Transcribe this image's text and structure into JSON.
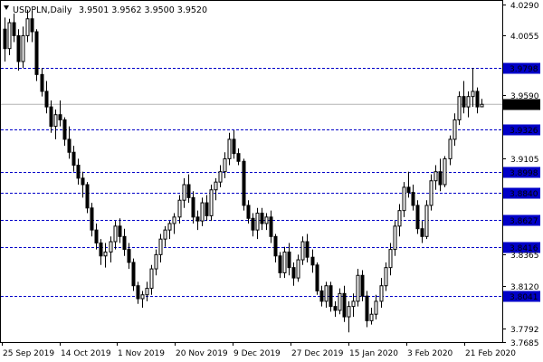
{
  "header": {
    "symbol_timeframe": "USDPLN,Daily",
    "ohlc": "3.9501 3.9562 3.9500 3.9520"
  },
  "colors": {
    "level": "#0000C8",
    "level_label_bg": "#0000C8",
    "current_label_bg": "#000000",
    "bid_line": "#B4B4B4",
    "candle_bull": "#FFFFFF",
    "candle_bear": "#000000"
  },
  "chart_data": {
    "type": "candlestick",
    "symbol": "USDPLN",
    "timeframe": "Daily",
    "ylim": [
      3.7685,
      4.0318
    ],
    "y_ticks": [
      "4.0290",
      "4.0055",
      "3.9590",
      "3.9105",
      "3.8365",
      "3.8120",
      "3.7792",
      "3.7685"
    ],
    "x_labels": [
      "25 Sep 2019",
      "14 Oct 2019",
      "1 Nov 2019",
      "20 Nov 2019",
      "9 Dec 2019",
      "27 Dec 2019",
      "15 Jan 2020",
      "3 Feb 2020",
      "21 Feb 2020"
    ],
    "levels": [
      "3.9798",
      "3.9326",
      "3.8998",
      "3.8840",
      "3.8627",
      "3.8416",
      "3.8041"
    ],
    "current_price": "3.9520",
    "candles": [
      [
        4.01,
        4.019,
        3.985,
        3.995
      ],
      [
        3.995,
        4.018,
        3.99,
        4.015
      ],
      [
        4.015,
        4.022,
        4.0,
        4.005
      ],
      [
        4.005,
        4.01,
        3.978,
        3.985
      ],
      [
        3.985,
        4.012,
        3.98,
        4.005
      ],
      [
        4.005,
        4.025,
        4.0,
        4.018
      ],
      [
        4.018,
        4.024,
        4.0,
        4.008
      ],
      [
        4.008,
        4.01,
        3.97,
        3.975
      ],
      [
        3.975,
        3.98,
        3.958,
        3.962
      ],
      [
        3.962,
        3.97,
        3.945,
        3.95
      ],
      [
        3.95,
        3.955,
        3.93,
        3.935
      ],
      [
        3.935,
        3.948,
        3.925,
        3.944
      ],
      [
        3.944,
        3.955,
        3.935,
        3.94
      ],
      [
        3.94,
        3.942,
        3.92,
        3.925
      ],
      [
        3.925,
        3.935,
        3.91,
        3.915
      ],
      [
        3.915,
        3.92,
        3.9,
        3.905
      ],
      [
        3.905,
        3.91,
        3.89,
        3.895
      ],
      [
        3.895,
        3.9,
        3.88,
        3.89
      ],
      [
        3.89,
        3.892,
        3.868,
        3.872
      ],
      [
        3.872,
        3.876,
        3.85,
        3.855
      ],
      [
        3.855,
        3.86,
        3.84,
        3.845
      ],
      [
        3.845,
        3.848,
        3.828,
        3.835
      ],
      [
        3.835,
        3.845,
        3.826,
        3.838
      ],
      [
        3.838,
        3.85,
        3.83,
        3.846
      ],
      [
        3.846,
        3.862,
        3.84,
        3.858
      ],
      [
        3.858,
        3.864,
        3.845,
        3.85
      ],
      [
        3.85,
        3.856,
        3.835,
        3.84
      ],
      [
        3.84,
        3.845,
        3.825,
        3.83
      ],
      [
        3.83,
        3.833,
        3.808,
        3.812
      ],
      [
        3.812,
        3.815,
        3.798,
        3.802
      ],
      [
        3.802,
        3.808,
        3.795,
        3.805
      ],
      [
        3.805,
        3.815,
        3.8,
        3.81
      ],
      [
        3.81,
        3.828,
        3.805,
        3.825
      ],
      [
        3.825,
        3.84,
        3.82,
        3.836
      ],
      [
        3.836,
        3.852,
        3.83,
        3.848
      ],
      [
        3.848,
        3.858,
        3.842,
        3.855
      ],
      [
        3.855,
        3.862,
        3.848,
        3.86
      ],
      [
        3.86,
        3.868,
        3.852,
        3.865
      ],
      [
        3.865,
        3.882,
        3.86,
        3.878
      ],
      [
        3.878,
        3.895,
        3.872,
        3.89
      ],
      [
        3.89,
        3.898,
        3.876,
        3.88
      ],
      [
        3.88,
        3.885,
        3.86,
        3.865
      ],
      [
        3.865,
        3.87,
        3.855,
        3.862
      ],
      [
        3.862,
        3.88,
        3.858,
        3.876
      ],
      [
        3.876,
        3.882,
        3.862,
        3.866
      ],
      [
        3.866,
        3.89,
        3.862,
        3.886
      ],
      [
        3.886,
        3.895,
        3.878,
        3.892
      ],
      [
        3.892,
        3.905,
        3.888,
        3.9
      ],
      [
        3.9,
        3.915,
        3.895,
        3.91
      ],
      [
        3.91,
        3.93,
        3.905,
        3.925
      ],
      [
        3.925,
        3.932,
        3.91,
        3.914
      ],
      [
        3.914,
        3.918,
        3.905,
        3.908
      ],
      [
        3.908,
        3.91,
        3.87,
        3.874
      ],
      [
        3.874,
        3.878,
        3.86,
        3.864
      ],
      [
        3.864,
        3.868,
        3.85,
        3.855
      ],
      [
        3.855,
        3.872,
        3.848,
        3.868
      ],
      [
        3.868,
        3.872,
        3.855,
        3.86
      ],
      [
        3.86,
        3.868,
        3.855,
        3.865
      ],
      [
        3.865,
        3.87,
        3.845,
        3.85
      ],
      [
        3.85,
        3.852,
        3.83,
        3.835
      ],
      [
        3.835,
        3.838,
        3.818,
        3.822
      ],
      [
        3.822,
        3.842,
        3.818,
        3.838
      ],
      [
        3.838,
        3.845,
        3.82,
        3.826
      ],
      [
        3.826,
        3.83,
        3.812,
        3.818
      ],
      [
        3.818,
        3.836,
        3.815,
        3.832
      ],
      [
        3.832,
        3.85,
        3.828,
        3.846
      ],
      [
        3.846,
        3.852,
        3.83,
        3.834
      ],
      [
        3.834,
        3.84,
        3.822,
        3.828
      ],
      [
        3.828,
        3.83,
        3.805,
        3.808
      ],
      [
        3.808,
        3.812,
        3.796,
        3.8
      ],
      [
        3.8,
        3.815,
        3.795,
        3.812
      ],
      [
        3.812,
        3.815,
        3.792,
        3.796
      ],
      [
        3.796,
        3.8,
        3.788,
        3.793
      ],
      [
        3.793,
        3.81,
        3.79,
        3.806
      ],
      [
        3.806,
        3.812,
        3.784,
        3.788
      ],
      [
        3.788,
        3.8,
        3.776,
        3.796
      ],
      [
        3.796,
        3.806,
        3.788,
        3.8
      ],
      [
        3.8,
        3.825,
        3.796,
        3.82
      ],
      [
        3.82,
        3.824,
        3.8,
        3.804
      ],
      [
        3.804,
        3.808,
        3.78,
        3.785
      ],
      [
        3.785,
        3.795,
        3.782,
        3.79
      ],
      [
        3.79,
        3.805,
        3.786,
        3.8
      ],
      [
        3.8,
        3.818,
        3.795,
        3.812
      ],
      [
        3.812,
        3.83,
        3.808,
        3.826
      ],
      [
        3.826,
        3.845,
        3.82,
        3.84
      ],
      [
        3.84,
        3.862,
        3.835,
        3.858
      ],
      [
        3.858,
        3.875,
        3.85,
        3.87
      ],
      [
        3.87,
        3.892,
        3.865,
        3.888
      ],
      [
        3.888,
        3.9,
        3.88,
        3.884
      ],
      [
        3.884,
        3.89,
        3.87,
        3.874
      ],
      [
        3.874,
        3.878,
        3.852,
        3.856
      ],
      [
        3.856,
        3.862,
        3.845,
        3.85
      ],
      [
        3.85,
        3.878,
        3.848,
        3.874
      ],
      [
        3.874,
        3.898,
        3.87,
        3.893
      ],
      [
        3.893,
        3.905,
        3.886,
        3.9
      ],
      [
        3.9,
        3.91,
        3.885,
        3.89
      ],
      [
        3.89,
        3.912,
        3.888,
        3.91
      ],
      [
        3.91,
        3.928,
        3.905,
        3.925
      ],
      [
        3.925,
        3.945,
        3.92,
        3.94
      ],
      [
        3.94,
        3.962,
        3.936,
        3.958
      ],
      [
        3.958,
        3.97,
        3.945,
        3.95
      ],
      [
        3.95,
        3.962,
        3.942,
        3.958
      ],
      [
        3.958,
        3.98,
        3.95,
        3.962
      ],
      [
        3.962,
        3.965,
        3.945,
        3.95
      ],
      [
        3.9501,
        3.9562,
        3.95,
        3.952
      ]
    ]
  }
}
